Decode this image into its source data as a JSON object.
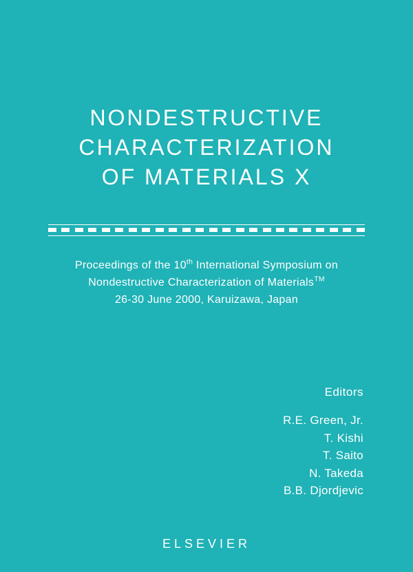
{
  "cover": {
    "background_color": "#1fb2b6",
    "text_color": "#ffffff",
    "title": {
      "lines": [
        "NONDESTRUCTIVE",
        "CHARACTERIZATION",
        "OF MATERIALS X"
      ],
      "fontsize": 32,
      "letter_spacing": 3,
      "weight": 300
    },
    "divider": {
      "dash_count": 24,
      "dash_width": 12,
      "color": "#ffffff"
    },
    "subtitle": {
      "line1_pre": "Proceedings of the 10",
      "line1_sup": "th",
      "line1_post": " International Symposium on",
      "line2_pre": "Nondestructive Characterization of Materials",
      "line2_sup": "TM",
      "line3": "26-30 June 2000, Karuizawa, Japan",
      "fontsize": 16
    },
    "editors": {
      "heading": "Editors",
      "heading_fontsize": 17,
      "names": [
        "R.E. Green, Jr.",
        "T. Kishi",
        "T. Saito",
        "N. Takeda",
        "B.B. Djordjevic"
      ],
      "name_fontsize": 17
    },
    "publisher": {
      "label": "ELSEVIER",
      "fontsize": 18,
      "letter_spacing": 5
    }
  }
}
